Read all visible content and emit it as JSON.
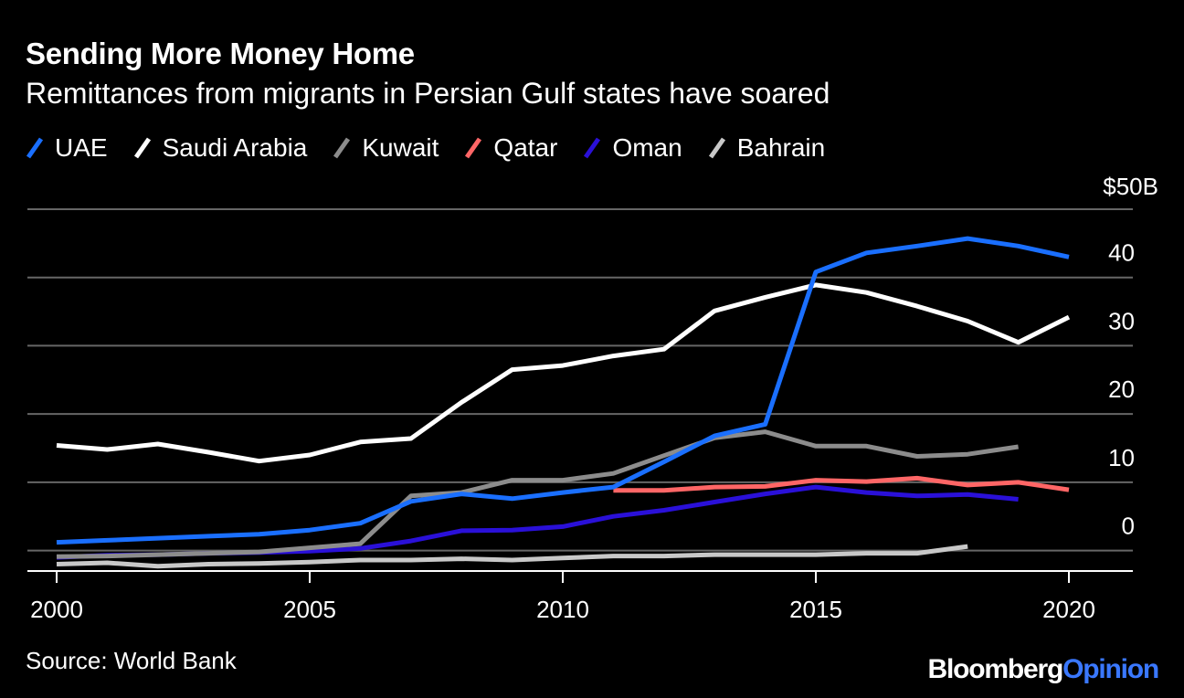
{
  "header": {
    "title": "Sending More Money Home",
    "subtitle": "Remittances from migrants in Persian Gulf states have soared"
  },
  "footer": {
    "source": "Source: World Bank",
    "logo_part1": "Bloomberg",
    "logo_part2": "Opinion"
  },
  "colors": {
    "background": "#000000",
    "gridline": "#666666",
    "axis": "#ffffff",
    "logo_accent": "#3a78ff"
  },
  "chart_data": {
    "type": "line",
    "title": "Sending More Money Home",
    "subtitle": "Remittances from migrants in Persian Gulf states have soared",
    "xlabel": "",
    "ylabel": "",
    "xlim": [
      2000,
      2021.3
    ],
    "ylim": [
      -3,
      50
    ],
    "x_ticks": [
      2000,
      2005,
      2010,
      2015,
      2020
    ],
    "x_tick_labels": [
      "2000",
      "2005",
      "2010",
      "2015",
      "2020"
    ],
    "y_ticks": [
      0,
      10,
      20,
      30,
      40,
      50
    ],
    "y_tick_labels": [
      "0",
      "10",
      "20",
      "30",
      "40",
      "$50B"
    ],
    "grid": true,
    "legend_position": "top-left",
    "series": [
      {
        "name": "UAE",
        "color": "#1a6fff",
        "x": [
          2000,
          2001,
          2002,
          2003,
          2004,
          2005,
          2006,
          2007,
          2008,
          2009,
          2010,
          2011,
          2012,
          2013,
          2014,
          2015,
          2016,
          2017,
          2018,
          2019,
          2020
        ],
        "values": [
          1.2,
          1.5,
          1.8,
          2.1,
          2.4,
          3.0,
          4.0,
          7.2,
          8.3,
          7.6,
          8.5,
          9.3,
          13.0,
          16.8,
          18.5,
          40.8,
          43.6,
          44.6,
          45.7,
          44.6,
          43.0
        ]
      },
      {
        "name": "Saudi Arabia",
        "color": "#ffffff",
        "x": [
          2000,
          2001,
          2002,
          2003,
          2004,
          2005,
          2006,
          2007,
          2008,
          2009,
          2010,
          2011,
          2012,
          2013,
          2014,
          2015,
          2016,
          2017,
          2018,
          2019,
          2020
        ],
        "values": [
          15.4,
          14.8,
          15.6,
          14.4,
          13.1,
          14.0,
          15.9,
          16.4,
          21.7,
          26.5,
          27.1,
          28.5,
          29.5,
          35.1,
          37.1,
          38.9,
          37.8,
          35.8,
          33.6,
          30.5,
          34.2
        ]
      },
      {
        "name": "Kuwait",
        "color": "#8c8c8c",
        "x": [
          2000,
          2001,
          2002,
          2003,
          2004,
          2005,
          2006,
          2007,
          2008,
          2009,
          2010,
          2011,
          2012,
          2013,
          2014,
          2015,
          2016,
          2017,
          2018,
          2019
        ],
        "values": [
          -0.9,
          -0.8,
          -0.6,
          -0.4,
          -0.2,
          0.4,
          1.0,
          8.0,
          8.5,
          10.3,
          10.3,
          11.3,
          13.9,
          16.5,
          17.4,
          15.3,
          15.3,
          13.8,
          14.1,
          15.2
        ]
      },
      {
        "name": "Qatar",
        "color": "#ff6666",
        "x": [
          2011,
          2012,
          2013,
          2014,
          2015,
          2016,
          2017,
          2018,
          2019,
          2020
        ],
        "values": [
          8.8,
          8.8,
          9.3,
          9.4,
          10.3,
          10.1,
          10.6,
          9.6,
          10.0,
          8.9
        ]
      },
      {
        "name": "Oman",
        "color": "#2a10d8",
        "x": [
          2000,
          2001,
          2002,
          2003,
          2004,
          2005,
          2006,
          2007,
          2008,
          2009,
          2010,
          2011,
          2012,
          2013,
          2014,
          2015,
          2016,
          2017,
          2018,
          2019
        ],
        "values": [
          -1.0,
          -0.7,
          -0.6,
          -0.4,
          -0.3,
          -0.1,
          0.3,
          1.4,
          2.9,
          3.0,
          3.5,
          5.0,
          5.9,
          7.1,
          8.3,
          9.3,
          8.5,
          8.0,
          8.2,
          7.5
        ]
      },
      {
        "name": "Bahrain",
        "color": "#c8c8c8",
        "x": [
          2000,
          2001,
          2002,
          2003,
          2004,
          2005,
          2006,
          2007,
          2008,
          2009,
          2010,
          2011,
          2012,
          2013,
          2014,
          2015,
          2016,
          2017,
          2018
        ],
        "values": [
          -2.0,
          -1.8,
          -2.3,
          -2.0,
          -1.9,
          -1.7,
          -1.4,
          -1.4,
          -1.2,
          -1.4,
          -1.1,
          -0.8,
          -0.8,
          -0.6,
          -0.6,
          -0.6,
          -0.4,
          -0.4,
          0.6
        ]
      }
    ]
  }
}
